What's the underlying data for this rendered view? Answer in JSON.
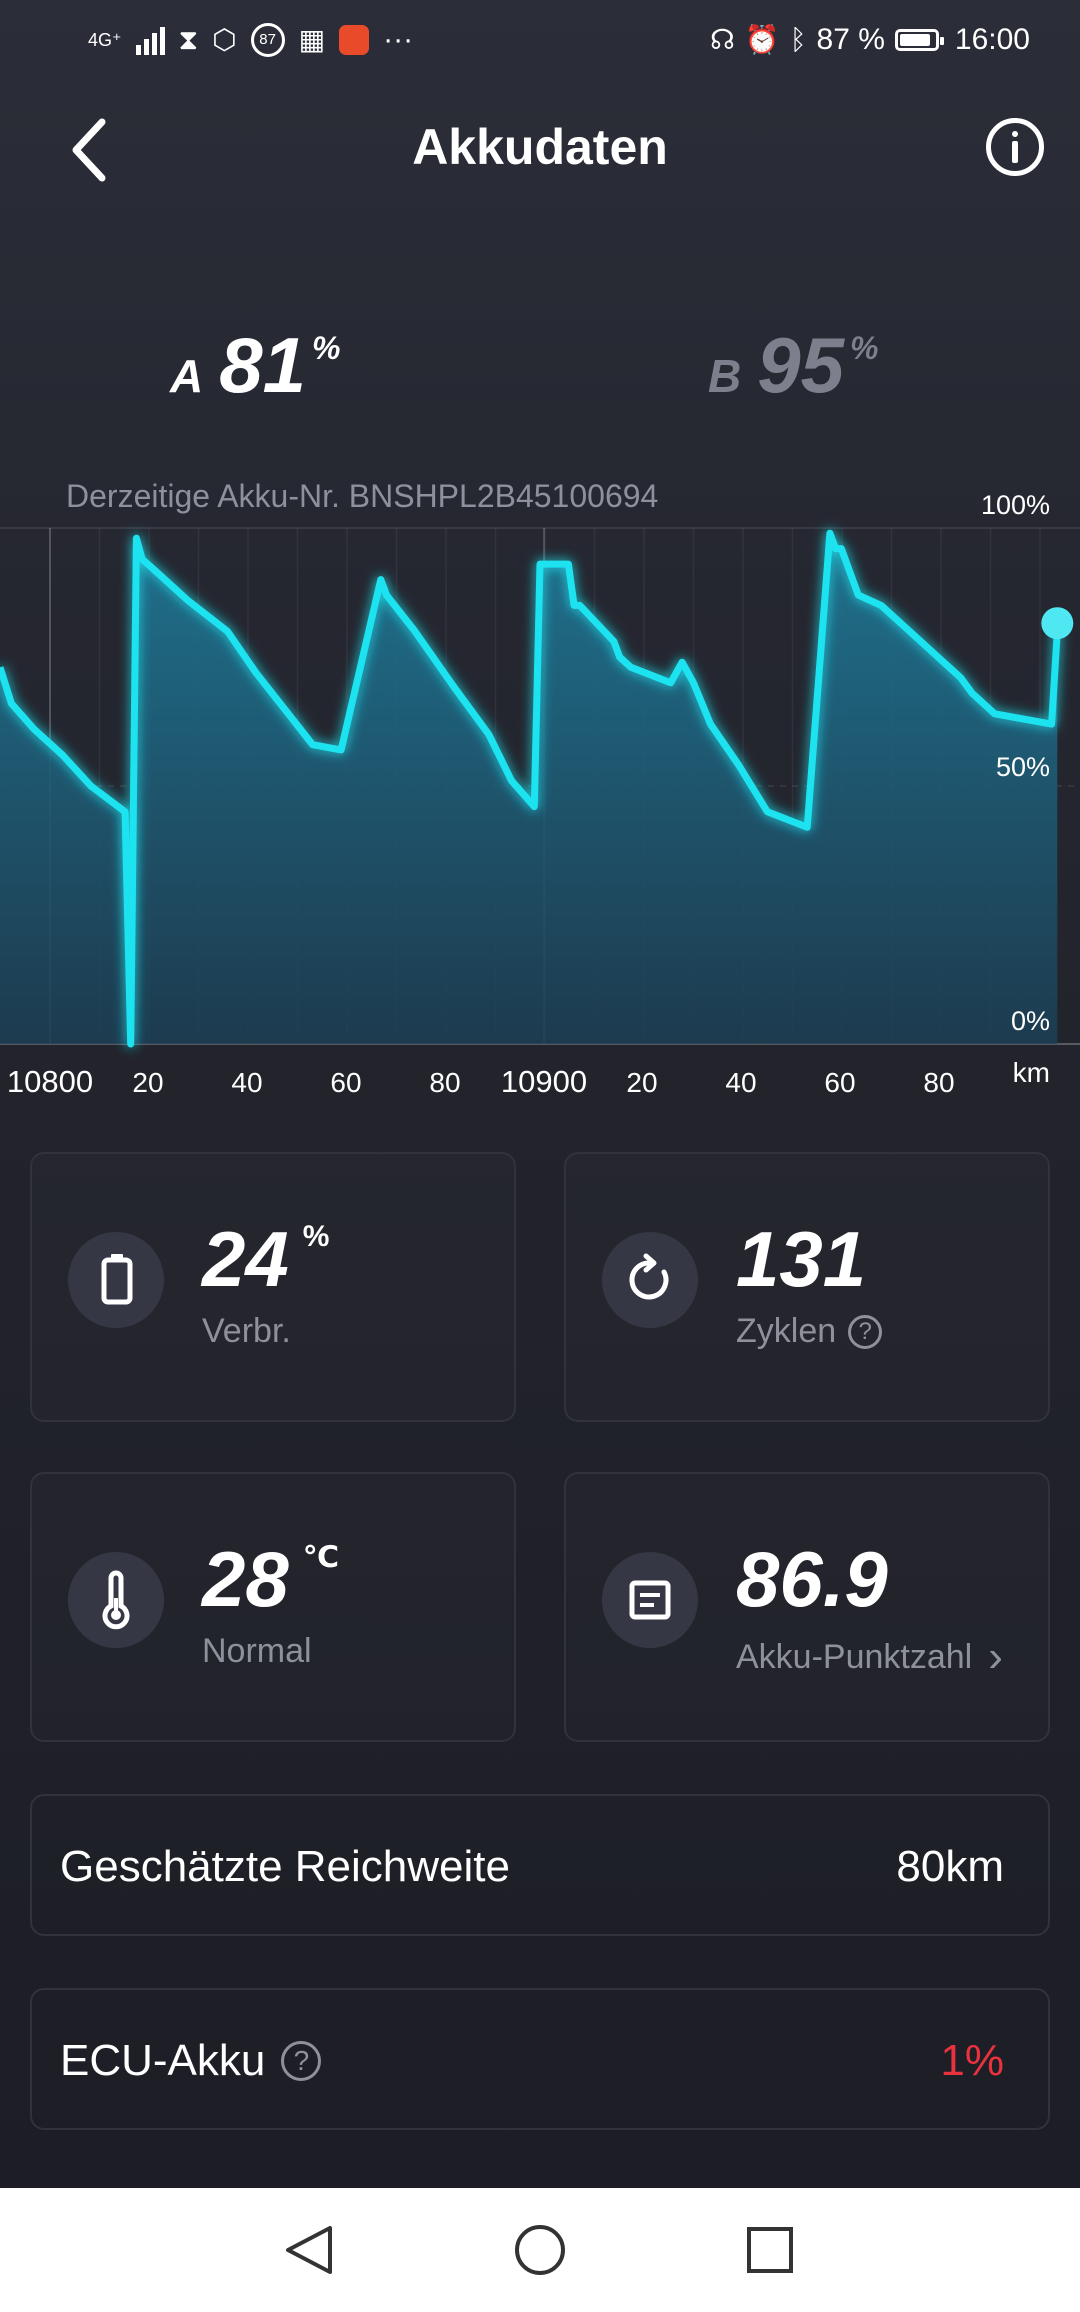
{
  "status_bar": {
    "network": "4G⁺",
    "badge": "87",
    "more": "···",
    "battery_percent": "87 %",
    "time": "16:00"
  },
  "header": {
    "title": "Akkudaten"
  },
  "battery_a": {
    "label": "A",
    "value": "81",
    "unit": "%"
  },
  "battery_b": {
    "label": "B",
    "value": "95",
    "unit": "%"
  },
  "battery_id": "Derzeitige Akku-Nr. BNSHPL2B45100694",
  "chart_data": {
    "type": "area",
    "y_ticks": [
      "100%",
      "50%",
      "0%"
    ],
    "x_ticks": [
      "10800",
      "20",
      "40",
      "60",
      "80",
      "10900",
      "20",
      "40",
      "60",
      "80"
    ],
    "x_unit": "km",
    "ylim": [
      0,
      100
    ],
    "xlim": [
      10800,
      10990
    ],
    "x": [
      10800,
      10802,
      10806,
      10811,
      10816,
      10822,
      10823,
      10824,
      10825,
      10828,
      10833,
      10840,
      10845,
      10850,
      10855,
      10860,
      10867,
      10868,
      10873,
      10880,
      10886,
      10890,
      10894,
      10895,
      10900,
      10901,
      10902,
      10908,
      10909,
      10911,
      10918,
      10920,
      10922,
      10925,
      10930,
      10935,
      10942,
      10946,
      10947,
      10948,
      10951,
      10955,
      10960,
      10966,
      10969,
      10971,
      10975,
      10985,
      10986
    ],
    "values": [
      73,
      66,
      61,
      56,
      50,
      45,
      0,
      98,
      94,
      91,
      86,
      80,
      72,
      65,
      58,
      57,
      90,
      87,
      80,
      69,
      60,
      51,
      46,
      93,
      93,
      85,
      85,
      78,
      75,
      73,
      70,
      74,
      70,
      62,
      54,
      45,
      42,
      99,
      96,
      96,
      87,
      85,
      80,
      74,
      71,
      68,
      64,
      62,
      80
    ],
    "line_color": "#1fe3ef",
    "fill_color": "#1d6c8a",
    "grid": true
  },
  "cards": {
    "consumption": {
      "value": "24",
      "unit": "%",
      "label": "Verbr."
    },
    "cycles": {
      "value": "131",
      "label": "Zyklen",
      "help": "?"
    },
    "temperature": {
      "value": "28",
      "unit": "℃",
      "label": "Normal"
    },
    "score": {
      "value": "86.9",
      "label": "Akku-Punktzahl",
      "chevron": "›"
    }
  },
  "range_row": {
    "label": "Geschätzte Reichweite",
    "value": "80km"
  },
  "ecu_row": {
    "label": "ECU-Akku",
    "help": "?",
    "value": "1%",
    "value_color": "#e8323e"
  }
}
